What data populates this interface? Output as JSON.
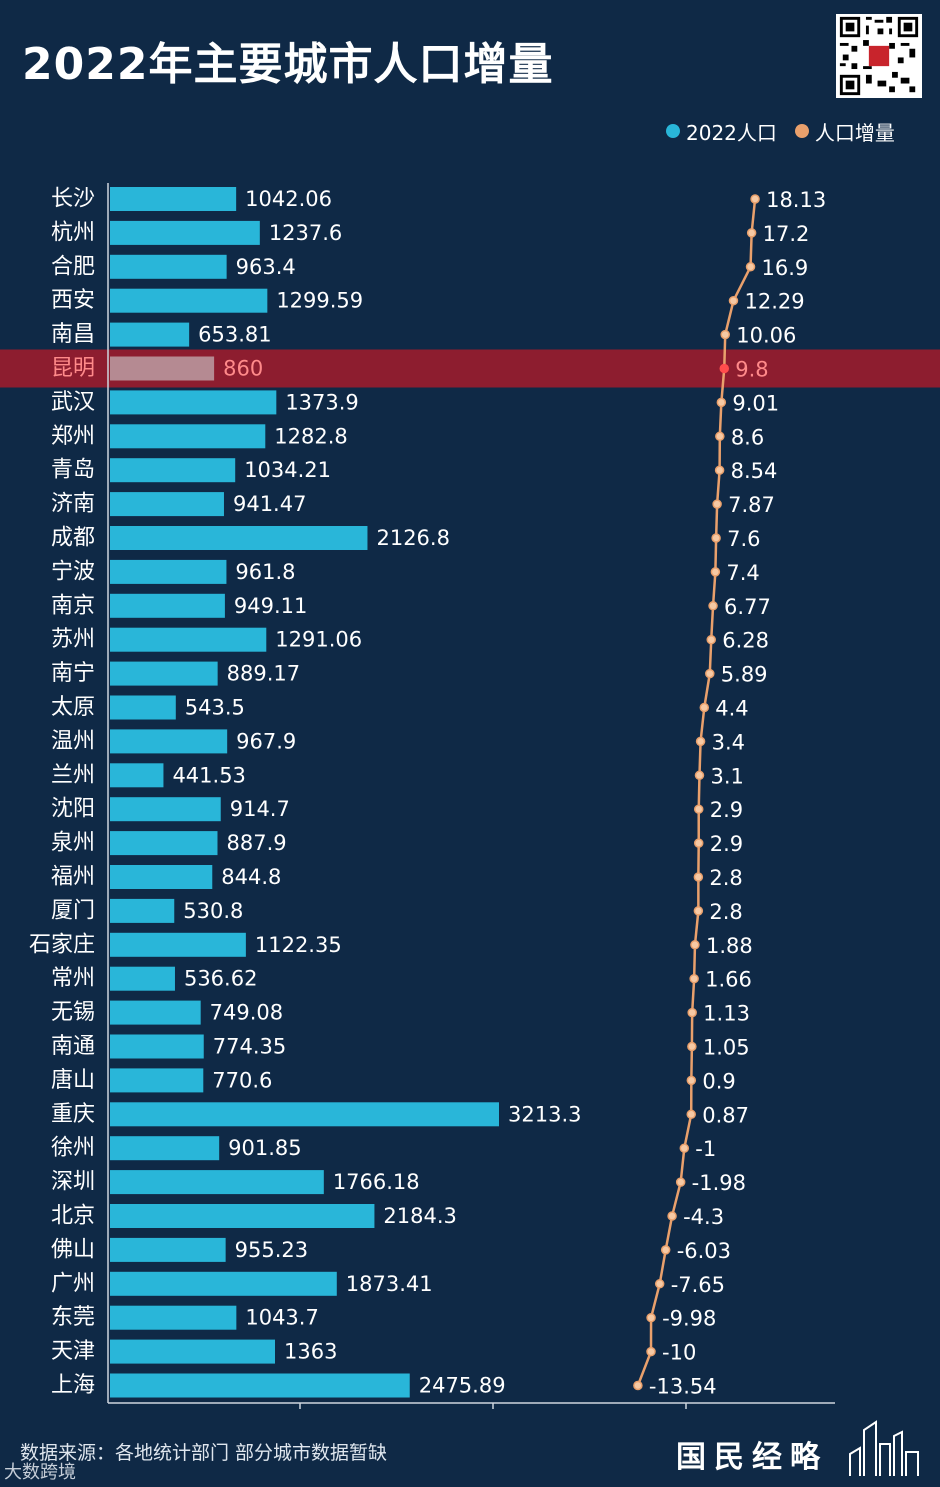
{
  "header": {
    "title": "2022年主要城市人口增量"
  },
  "legend": {
    "items": [
      {
        "label": "2022人口",
        "color": "#29b6d9"
      },
      {
        "label": "人口增量",
        "color": "#e9a06c"
      }
    ]
  },
  "footer": {
    "source": "数据来源：各地统计部门 部分城市数据暂缺",
    "brand": "国民经略",
    "watermark": "大数跨境"
  },
  "colors": {
    "background": "#0f2946",
    "bar": "#29b6d9",
    "line": "#e9a06c",
    "highlight_band": "#9b1c2c",
    "highlight_bar": "#b58a92",
    "highlight_text": "#ff8a8a"
  },
  "chart_data": {
    "type": "bar",
    "highlight_category": "昆明",
    "categories": [
      "长沙",
      "杭州",
      "合肥",
      "西安",
      "南昌",
      "昆明",
      "武汉",
      "郑州",
      "青岛",
      "济南",
      "成都",
      "宁波",
      "南京",
      "苏州",
      "南宁",
      "太原",
      "温州",
      "兰州",
      "沈阳",
      "泉州",
      "福州",
      "厦门",
      "石家庄",
      "常州",
      "无锡",
      "南通",
      "唐山",
      "重庆",
      "徐州",
      "深圳",
      "北京",
      "佛山",
      "广州",
      "东莞",
      "天津",
      "上海"
    ],
    "series": [
      {
        "name": "2022人口",
        "type": "bar",
        "values": [
          1042.06,
          1237.6,
          963.4,
          1299.59,
          653.81,
          860,
          1373.9,
          1282.8,
          1034.21,
          941.47,
          2126.8,
          961.8,
          949.11,
          1291.06,
          889.17,
          543.5,
          967.9,
          441.53,
          914.7,
          887.9,
          844.8,
          530.8,
          1122.35,
          536.62,
          749.08,
          774.35,
          770.6,
          3213.3,
          901.85,
          1766.18,
          2184.3,
          955.23,
          1873.41,
          1043.7,
          1363,
          2475.89
        ],
        "labels": [
          "1042.06",
          "1237.6",
          "963.4",
          "1299.59",
          "653.81",
          "860",
          "1373.9",
          "1282.8",
          "1034.21",
          "941.47",
          "2126.8",
          "961.8",
          "949.11",
          "1291.06",
          "889.17",
          "543.5",
          "967.9",
          "441.53",
          "914.7",
          "887.9",
          "844.8",
          "530.8",
          "1122.35",
          "536.62",
          "749.08",
          "774.35",
          "770.6",
          "3213.3",
          "901.85",
          "1766.18",
          "2184.3",
          "955.23",
          "1873.41",
          "1043.7",
          "1363",
          "2475.89"
        ]
      },
      {
        "name": "人口增量",
        "type": "line",
        "values": [
          18.13,
          17.2,
          16.9,
          12.29,
          10.06,
          9.8,
          9.01,
          8.6,
          8.54,
          7.87,
          7.6,
          7.4,
          6.77,
          6.28,
          5.89,
          4.4,
          3.4,
          3.1,
          2.9,
          2.9,
          2.8,
          2.8,
          1.88,
          1.66,
          1.13,
          1.05,
          0.9,
          0.87,
          -1,
          -1.98,
          -4.3,
          -6.03,
          -7.65,
          -9.98,
          -10,
          -13.54
        ],
        "labels": [
          "18.13",
          "17.2",
          "16.9",
          "12.29",
          "10.06",
          "9.8",
          "9.01",
          "8.6",
          "8.54",
          "7.87",
          "7.6",
          "7.4",
          "6.77",
          "6.28",
          "5.89",
          "4.4",
          "3.4",
          "3.1",
          "2.9",
          "2.9",
          "2.8",
          "2.8",
          "1.88",
          "1.66",
          "1.13",
          "1.05",
          "0.9",
          "0.87",
          "-1",
          "-1.98",
          "-4.3",
          "-6.03",
          "-7.65",
          "-9.98",
          "-10",
          "-13.54"
        ]
      }
    ]
  }
}
